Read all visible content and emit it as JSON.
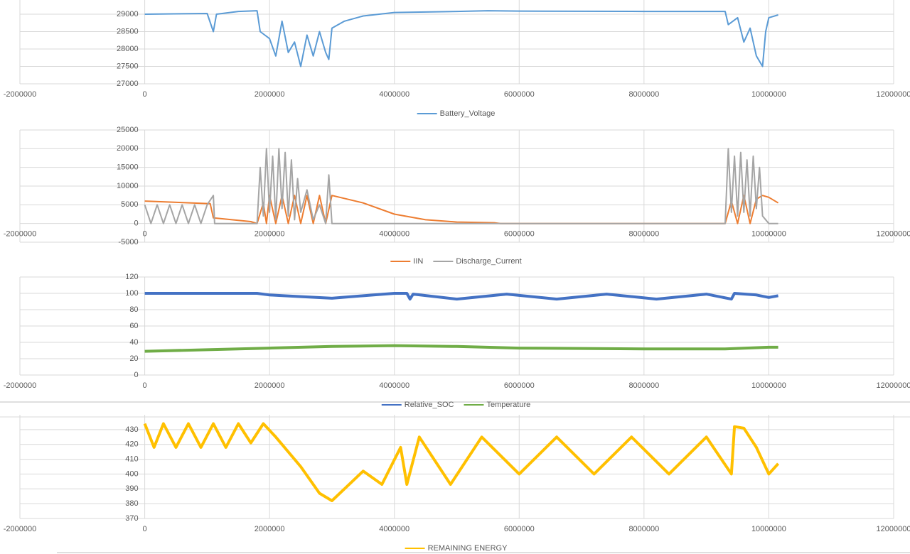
{
  "chart_data": [
    {
      "type": "line",
      "series": [
        {
          "name": "Battery_Voltage",
          "color": "#5b9bd5",
          "x": [
            0,
            1000000,
            1100000,
            1150000,
            1500000,
            1800000,
            1850000,
            2000000,
            2100000,
            2200000,
            2300000,
            2400000,
            2500000,
            2600000,
            2700000,
            2800000,
            2900000,
            2950000,
            3000000,
            3200000,
            3500000,
            4000000,
            5000000,
            5500000,
            6000000,
            8000000,
            9300000,
            9350000,
            9500000,
            9600000,
            9700000,
            9800000,
            9900000,
            9950000,
            10000000,
            10150000
          ],
          "values": [
            29000,
            29020,
            28500,
            29000,
            29080,
            29100,
            28500,
            28300,
            27800,
            28800,
            27900,
            28200,
            27500,
            28400,
            27800,
            28500,
            27900,
            27700,
            28600,
            28800,
            28950,
            29050,
            29080,
            29100,
            29090,
            29080,
            29080,
            28700,
            28900,
            28200,
            28600,
            27800,
            27500,
            28500,
            28900,
            28980
          ]
        }
      ],
      "xlim": [
        -2000000,
        12000000
      ],
      "xticks": [
        -2000000,
        0,
        2000000,
        4000000,
        6000000,
        8000000,
        10000000,
        12000000
      ],
      "ylim": [
        27000,
        29500
      ],
      "yticks": [
        27000,
        27500,
        28000,
        28500,
        29000
      ],
      "grid": true
    },
    {
      "type": "line",
      "series": [
        {
          "name": "IIN",
          "color": "#ed7d31",
          "x": [
            0,
            1050000,
            1100000,
            1700000,
            1800000,
            1900000,
            1950000,
            2000000,
            2100000,
            2200000,
            2300000,
            2400000,
            2500000,
            2600000,
            2700000,
            2800000,
            2900000,
            3000000,
            3500000,
            4000000,
            4500000,
            5000000,
            5600000,
            5700000,
            9300000,
            9400000,
            9500000,
            9600000,
            9700000,
            9800000,
            9900000,
            10000000,
            10150000
          ],
          "values": [
            6000,
            5300,
            1500,
            500,
            0,
            5500,
            0,
            7500,
            0,
            7500,
            0,
            7500,
            0,
            7500,
            0,
            7500,
            0,
            7500,
            5500,
            2500,
            1000,
            400,
            200,
            0,
            0,
            6000,
            0,
            7500,
            0,
            6500,
            7500,
            7000,
            5500
          ]
        },
        {
          "name": "Discharge_Current",
          "color": "#a5a5a5",
          "x": [
            0,
            100000,
            200000,
            300000,
            400000,
            500000,
            600000,
            700000,
            800000,
            900000,
            1000000,
            1100000,
            1120000,
            1800000,
            1850000,
            1900000,
            1950000,
            2000000,
            2050000,
            2100000,
            2150000,
            2200000,
            2250000,
            2300000,
            2350000,
            2400000,
            2450000,
            2500000,
            2600000,
            2700000,
            2800000,
            2900000,
            2950000,
            3000000,
            9300000,
            9350000,
            9400000,
            9450000,
            9500000,
            9550000,
            9600000,
            9650000,
            9700000,
            9750000,
            9800000,
            9850000,
            9900000,
            10000000,
            10150000
          ],
          "values": [
            5000,
            0,
            5000,
            0,
            5000,
            0,
            5000,
            0,
            5000,
            0,
            5000,
            7500,
            0,
            0,
            15000,
            2000,
            20000,
            3000,
            18000,
            1000,
            20000,
            4000,
            19000,
            2000,
            17000,
            1000,
            12000,
            3000,
            9000,
            1000,
            5000,
            0,
            13000,
            0,
            0,
            20000,
            3000,
            18000,
            2000,
            19000,
            3000,
            17000,
            2000,
            18000,
            4000,
            15000,
            2000,
            0,
            0
          ]
        }
      ],
      "xlim": [
        -2000000,
        12000000
      ],
      "xticks": [
        -2000000,
        0,
        2000000,
        4000000,
        6000000,
        8000000,
        10000000,
        12000000
      ],
      "ylim": [
        -5000,
        25000
      ],
      "yticks": [
        -5000,
        0,
        5000,
        10000,
        15000,
        20000,
        25000
      ],
      "grid": true
    },
    {
      "type": "line",
      "series": [
        {
          "name": "Relative_SOC",
          "color": "#4472c4",
          "x": [
            0,
            1800000,
            2000000,
            2500000,
            3000000,
            3500000,
            4000000,
            4200000,
            4250000,
            4300000,
            5000000,
            5800000,
            6600000,
            7400000,
            8200000,
            9000000,
            9400000,
            9450000,
            9800000,
            10000000,
            10150000
          ],
          "values": [
            100,
            100,
            98,
            96,
            94,
            97,
            100,
            100,
            93,
            99,
            93,
            99,
            93,
            99,
            93,
            99,
            93,
            100,
            98,
            95,
            97
          ]
        },
        {
          "name": "Temperature",
          "color": "#70ad47",
          "x": [
            0,
            1000000,
            2000000,
            3000000,
            4000000,
            5000000,
            6000000,
            8000000,
            9300000,
            10000000,
            10150000
          ],
          "values": [
            29,
            31,
            33,
            35,
            36,
            35,
            33,
            32,
            32,
            34,
            34
          ]
        }
      ],
      "xlim": [
        -2000000,
        12000000
      ],
      "xticks": [
        -2000000,
        0,
        2000000,
        4000000,
        6000000,
        8000000,
        10000000,
        12000000
      ],
      "ylim": [
        0,
        120
      ],
      "yticks": [
        0,
        20,
        40,
        60,
        80,
        100,
        120
      ],
      "grid": true
    },
    {
      "type": "line",
      "series": [
        {
          "name": "REMAINING ENERGY",
          "color": "#ffc000",
          "x": [
            0,
            150000,
            300000,
            500000,
            700000,
            900000,
            1100000,
            1300000,
            1500000,
            1700000,
            1900000,
            2100000,
            2500000,
            2800000,
            3000000,
            3200000,
            3500000,
            3800000,
            4100000,
            4200000,
            4400000,
            4900000,
            5400000,
            6000000,
            6600000,
            7200000,
            7800000,
            8400000,
            9000000,
            9400000,
            9450000,
            9600000,
            9800000,
            10000000,
            10150000
          ],
          "values": [
            434,
            418,
            434,
            418,
            434,
            418,
            434,
            418,
            434,
            421,
            434,
            425,
            405,
            387,
            382,
            390,
            402,
            393,
            418,
            393,
            425,
            393,
            425,
            400,
            425,
            400,
            425,
            400,
            425,
            400,
            432,
            431,
            418,
            400,
            407
          ]
        }
      ],
      "xlim": [
        -2000000,
        12000000
      ],
      "xticks": [
        -2000000,
        0,
        2000000,
        4000000,
        6000000,
        8000000,
        10000000,
        12000000
      ],
      "ylim": [
        370,
        440
      ],
      "yticks": [
        370,
        380,
        390,
        400,
        410,
        420,
        430
      ],
      "grid": true
    }
  ]
}
